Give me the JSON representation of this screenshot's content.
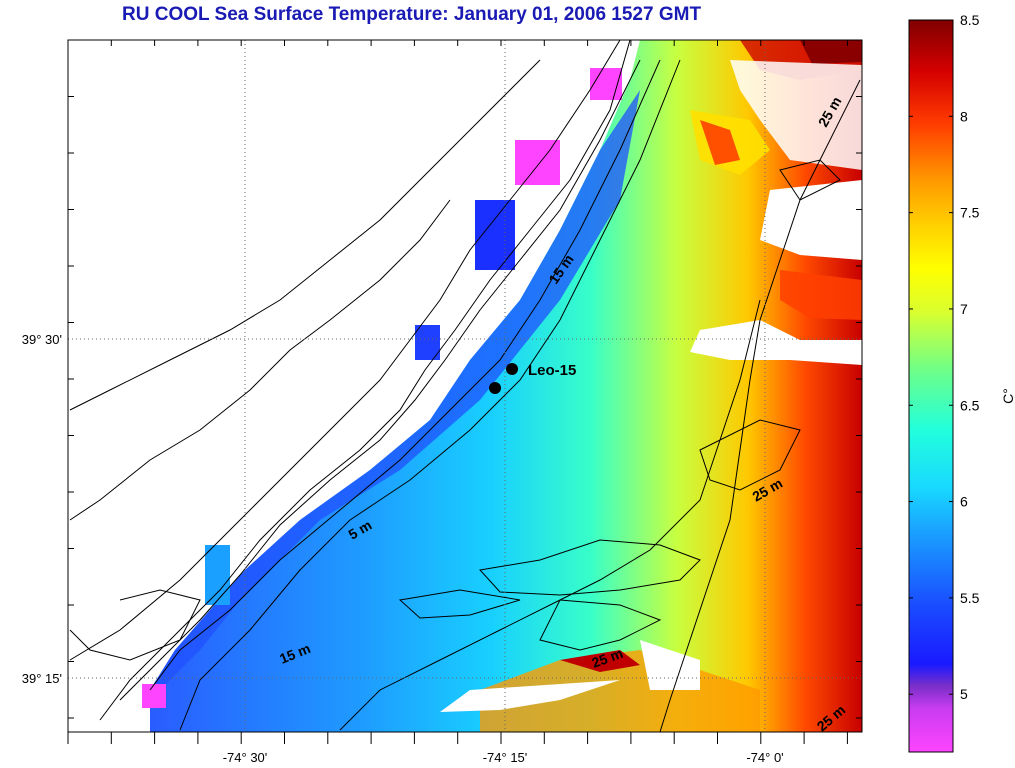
{
  "title": "RU COOL  Sea Surface Temperature:  January 01, 2006 1527 GMT",
  "axes": {
    "x_ticks": [
      "-74° 30'",
      "-74° 15'",
      "-74° 0'"
    ],
    "y_ticks": [
      "39° 30'",
      "39° 15'"
    ]
  },
  "colorbar": {
    "unit_label": "C°",
    "ticks": [
      "8.5",
      "8",
      "7.5",
      "7",
      "6.5",
      "6",
      "5.5",
      "5"
    ],
    "range": [
      4.7,
      8.5
    ],
    "colors": [
      "#ff44ff",
      "#7a2fc8",
      "#1a1aff",
      "#1e6cff",
      "#18c8ff",
      "#22ffdc",
      "#6cff8a",
      "#e6ff20",
      "#ffd000",
      "#ff7a00",
      "#ff1a00",
      "#c00000",
      "#800000"
    ]
  },
  "map": {
    "station_label": "Leo-15",
    "contour_labels": [
      "5 m",
      "15 m",
      "15 m",
      "25 m",
      "25 m",
      "25 m",
      "25 m"
    ]
  }
}
